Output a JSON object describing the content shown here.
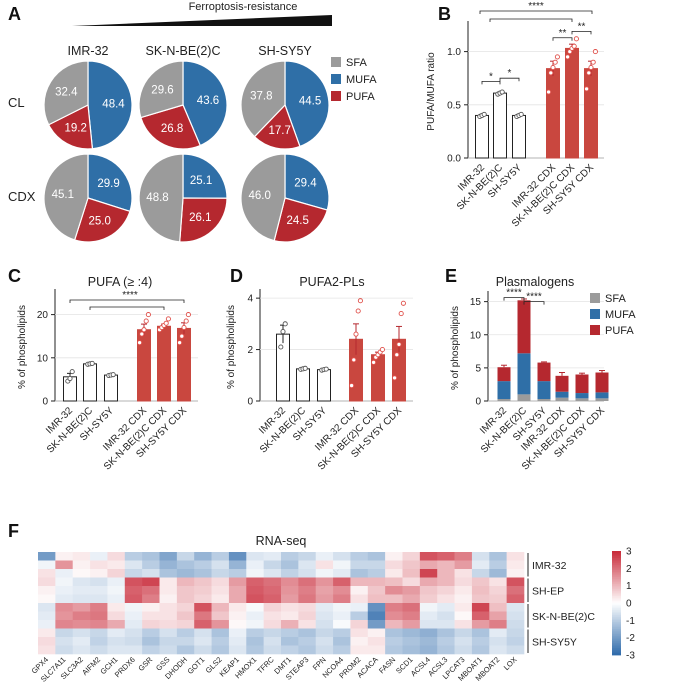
{
  "colors": {
    "sfa": "#9b9b9b",
    "mufa": "#2f6fa7",
    "pufa": "#b5282f",
    "bar_white": "#ffffff",
    "bar_red": "#c9473f",
    "dot_red": "#e0504a"
  },
  "panel_labels": [
    "A",
    "B",
    "C",
    "D",
    "E",
    "F"
  ],
  "chart_data": [
    {
      "id": "A",
      "type": "pie",
      "header": "Ferroptosis-resistance",
      "legend": [
        "SFA",
        "MUFA",
        "PUFA"
      ],
      "columns": [
        "IMR-32",
        "SK-N-BE(2)C",
        "SH-SY5Y"
      ],
      "rows": [
        "CL",
        "CDX"
      ],
      "slices": [
        [
          {
            "SFA": 32.4,
            "MUFA": 48.4,
            "PUFA": 19.2
          },
          {
            "SFA": 29.6,
            "MUFA": 43.6,
            "PUFA": 26.8
          },
          {
            "SFA": 37.8,
            "MUFA": 44.5,
            "PUFA": 17.7
          }
        ],
        [
          {
            "SFA": 45.1,
            "MUFA": 29.9,
            "PUFA": 25.0
          },
          {
            "SFA": 48.8,
            "MUFA": 25.1,
            "PUFA": 26.1
          },
          {
            "SFA": 46.0,
            "MUFA": 29.4,
            "PUFA": 24.5
          }
        ]
      ],
      "slice_text": [
        [
          {
            "SFA": "32.4",
            "MUFA": "48.4",
            "PUFA": "19.2"
          },
          {
            "SFA": "29.6",
            "MUFA": "43.6",
            "PUFA": "26.8"
          },
          {
            "SFA": "37.8",
            "MUFA": "44.5",
            "PUFA": "17.7"
          }
        ],
        [
          {
            "SFA": "45.1",
            "MUFA": "29.9",
            "PUFA": "25.0"
          },
          {
            "SFA": "48.8",
            "MUFA": "25.1",
            "PUFA": "26.1"
          },
          {
            "SFA": "46.0",
            "MUFA": "29.4",
            "PUFA": "24.5"
          }
        ]
      ]
    },
    {
      "id": "B",
      "type": "bar",
      "title": "",
      "ylabel": "PUFA/MUFA ratio",
      "ylim": [
        0,
        1.25
      ],
      "yticks": [
        0,
        0.5,
        1.0
      ],
      "ytick_labels": [
        "0.0",
        "0.5",
        "1.0"
      ],
      "categories": [
        "IMR-32",
        "SK-N-BE(2)C",
        "SH-SY5Y",
        "IMR-32 CDX",
        "SK-N-BE(2)C CDX",
        "SH-SY5Y CDX"
      ],
      "values": [
        0.4,
        0.61,
        0.4,
        0.84,
        1.03,
        0.84
      ],
      "errors": [
        0.01,
        0.01,
        0.01,
        0.07,
        0.04,
        0.07
      ],
      "points": [
        [
          0.39,
          0.4,
          0.41
        ],
        [
          0.6,
          0.61,
          0.62
        ],
        [
          0.39,
          0.4,
          0.41
        ],
        [
          0.62,
          0.8,
          0.85,
          0.9,
          0.95
        ],
        [
          0.95,
          1.0,
          1.03,
          1.05,
          1.12
        ],
        [
          0.65,
          0.8,
          0.85,
          0.9,
          1.0
        ]
      ],
      "significance": [
        {
          "from": 0,
          "to": 1,
          "level": 0.72,
          "label": "*"
        },
        {
          "from": 1,
          "to": 2,
          "level": 0.75,
          "label": "*"
        },
        {
          "from": 3,
          "to": 4,
          "level": 1.13,
          "label": "**"
        },
        {
          "from": 4,
          "to": 5,
          "level": 1.19,
          "label": "**"
        }
      ],
      "group_significance": {
        "label": "****"
      }
    },
    {
      "id": "C",
      "type": "bar",
      "title": "PUFA (≥ :4)",
      "ylabel": "% of phospholipids",
      "ylim": [
        0,
        25
      ],
      "yticks": [
        0,
        10,
        20
      ],
      "ytick_labels": [
        "0",
        "10",
        "20"
      ],
      "categories": [
        "IMR-32",
        "SK-N-BE(2)C",
        "SH-SY5Y",
        "IMR-32 CDX",
        "SK-N-BE(2)C CDX",
        "SH-SY5Y CDX"
      ],
      "values": [
        5.6,
        8.6,
        6.0,
        16.5,
        17.3,
        16.8
      ],
      "errors": [
        0.8,
        0.1,
        0.1,
        1.3,
        0.5,
        1.3
      ],
      "points": [
        [
          4.6,
          5.2,
          6.8
        ],
        [
          8.5,
          8.6,
          8.7
        ],
        [
          5.9,
          6.0,
          6.1
        ],
        [
          13.5,
          15.5,
          16.5,
          18.5,
          20.0
        ],
        [
          16.5,
          17.0,
          17.5,
          18.0,
          19.0
        ],
        [
          13.5,
          15.0,
          17.0,
          18.5,
          20.0
        ]
      ],
      "group_significance": {
        "label": "****"
      }
    },
    {
      "id": "D",
      "type": "bar",
      "title": "PUFA2-PLs",
      "ylabel": "% of phospholipids",
      "ylim": [
        0,
        4.2
      ],
      "yticks": [
        0,
        2,
        4
      ],
      "ytick_labels": [
        "0",
        "2",
        "4"
      ],
      "categories": [
        "IMR-32",
        "SK-N-BE(2)C",
        "SH-SY5Y",
        "IMR-32 CDX",
        "SK-N-BE(2)C CDX",
        "SH-SY5Y CDX"
      ],
      "values": [
        2.6,
        1.25,
        1.22,
        2.4,
        1.8,
        2.4
      ],
      "errors": [
        0.35,
        0.02,
        0.02,
        0.6,
        0.1,
        0.5
      ],
      "points": [
        [
          2.1,
          2.7,
          3.0
        ],
        [
          1.23,
          1.25,
          1.27
        ],
        [
          1.2,
          1.22,
          1.24
        ],
        [
          0.6,
          1.6,
          2.6,
          3.5,
          3.9
        ],
        [
          1.5,
          1.7,
          1.8,
          1.9,
          2.0
        ],
        [
          0.9,
          1.8,
          2.2,
          3.4,
          3.8
        ]
      ]
    },
    {
      "id": "E",
      "type": "bar",
      "stacked": true,
      "title": "Plasmalogens",
      "ylabel": "% of phospholipids",
      "ylim": [
        0,
        16
      ],
      "yticks": [
        0,
        5,
        10,
        15
      ],
      "ytick_labels": [
        "0",
        "5",
        "10",
        "15"
      ],
      "categories": [
        "IMR-32",
        "SK-N-BE(2)C",
        "SH-SY5Y",
        "IMR-32 CDX",
        "SK-N-BE(2)C CDX",
        "SH-SY5Y CDX"
      ],
      "legend": [
        "SFA",
        "MUFA",
        "PUFA"
      ],
      "series": [
        {
          "name": "SFA",
          "values": [
            0.3,
            1.0,
            0.3,
            0.5,
            0.4,
            0.4
          ]
        },
        {
          "name": "MUFA",
          "values": [
            2.7,
            6.2,
            2.7,
            0.9,
            0.8,
            0.9
          ]
        },
        {
          "name": "PUFA",
          "values": [
            2.1,
            8.0,
            2.8,
            2.4,
            2.8,
            3.0
          ]
        }
      ],
      "errors": [
        0.3,
        0.2,
        0.1,
        0.5,
        0.2,
        0.3
      ],
      "significance": [
        {
          "from": 0,
          "to": 1,
          "level": 15.6,
          "label": "****"
        },
        {
          "from": 1,
          "to": 2,
          "level": 15.0,
          "label": "****"
        }
      ]
    },
    {
      "id": "F",
      "type": "heatmap",
      "title": "RNA-seq",
      "genes": [
        "GPX4",
        "SLC7A11",
        "SLC3A2",
        "AIFM2",
        "GCH1",
        "PRDX6",
        "GSR",
        "GSS",
        "DHODH",
        "GOT1",
        "GLS2",
        "KEAP1",
        "HMOX1",
        "TFRC",
        "DMT1",
        "STEAP3",
        "FPN",
        "NCOA4",
        "PROM2",
        "ACACA",
        "FASN",
        "SCD1",
        "ACSL4",
        "ACSL3",
        "LPCAT3",
        "MBOAT1",
        "MBOAT2",
        "LOX"
      ],
      "groups": [
        "IMR-32",
        "SH-EP",
        "SK-N-BE(2)C",
        "SH-SY5Y"
      ],
      "rows_per_group": 3,
      "colorbar_ticks": [
        3,
        2,
        1,
        0,
        -1,
        -2,
        -3
      ],
      "colorbar_labels": [
        "3",
        "2",
        "1",
        "0",
        "-1",
        "-2",
        "-3"
      ],
      "matrix": [
        [
          -2.0,
          0.2,
          0.3,
          -0.3,
          0.5,
          -1.0,
          -1.2,
          -1.8,
          -0.8,
          -1.5,
          -1.0,
          -2.2,
          -0.5,
          -0.4,
          -1.0,
          -0.8,
          -0.3,
          -0.6,
          -1.0,
          -1.2,
          0.2,
          0.6,
          2.4,
          2.2,
          1.8,
          -0.6,
          -1.2,
          0.4
        ],
        [
          -0.2,
          1.5,
          0.2,
          0.4,
          0.3,
          -0.5,
          -1.0,
          -1.5,
          -1.2,
          -1.0,
          -0.6,
          -1.5,
          -0.3,
          -0.8,
          -1.2,
          -0.5,
          0.4,
          -0.2,
          -0.8,
          -0.8,
          0.5,
          0.8,
          1.2,
          1.0,
          1.4,
          -0.4,
          -1.0,
          0.3
        ],
        [
          0.4,
          -0.3,
          0.1,
          0.2,
          0.6,
          -0.8,
          -0.6,
          -1.2,
          -1.4,
          -1.2,
          -0.8,
          -1.0,
          -0.2,
          -0.5,
          -0.9,
          -0.6,
          -0.2,
          -0.4,
          -1.2,
          -1.0,
          0.3,
          0.9,
          2.6,
          1.0,
          0.4,
          -0.8,
          -1.4,
          0.2
        ],
        [
          0.5,
          -0.2,
          -0.5,
          -0.6,
          -0.3,
          2.4,
          2.6,
          0.3,
          1.0,
          0.8,
          0.5,
          1.4,
          2.2,
          2.0,
          1.6,
          2.0,
          1.5,
          2.2,
          1.0,
          1.0,
          0.9,
          0.5,
          1.2,
          1.0,
          0.5,
          0.8,
          0.4,
          2.4
        ],
        [
          0.2,
          -0.3,
          -0.4,
          -0.4,
          -0.2,
          2.2,
          2.0,
          0.3,
          0.8,
          0.7,
          0.4,
          1.2,
          2.3,
          2.1,
          1.5,
          1.8,
          1.3,
          1.6,
          0.2,
          0.8,
          1.6,
          1.4,
          0.8,
          0.6,
          0.3,
          0.9,
          0.6,
          2.0
        ],
        [
          0.1,
          -0.4,
          -0.5,
          -0.5,
          -0.3,
          2.3,
          1.8,
          0.2,
          0.8,
          0.6,
          0.3,
          1.2,
          2.4,
          2.2,
          1.4,
          1.9,
          1.4,
          1.8,
          0.4,
          0.9,
          0.9,
          1.2,
          0.7,
          0.4,
          0.2,
          0.8,
          0.7,
          2.2
        ],
        [
          -0.5,
          1.6,
          1.4,
          1.8,
          0.3,
          -0.2,
          0.2,
          0.4,
          0.6,
          2.4,
          1.0,
          0.3,
          -0.1,
          0.6,
          0.4,
          0.5,
          -0.4,
          -0.2,
          -0.3,
          -2.2,
          1.8,
          2.0,
          -0.2,
          -0.4,
          0.3,
          2.6,
          0.9,
          -0.5
        ],
        [
          -0.4,
          1.5,
          1.8,
          1.9,
          0.5,
          -0.3,
          0.4,
          0.4,
          0.8,
          1.9,
          0.8,
          0.2,
          -0.3,
          0.4,
          0.3,
          0.6,
          -0.5,
          -0.3,
          -1.0,
          -2.5,
          1.6,
          1.8,
          -0.4,
          -0.6,
          0.1,
          2.2,
          1.3,
          -0.6
        ],
        [
          -0.3,
          1.7,
          1.6,
          1.7,
          1.2,
          -0.4,
          0.6,
          0.5,
          0.6,
          2.2,
          1.5,
          0.1,
          -0.2,
          0.5,
          1.1,
          0.4,
          -0.6,
          -0.1,
          0.6,
          -2.0,
          1.0,
          1.4,
          -0.5,
          -0.5,
          0.4,
          1.4,
          1.8,
          -0.7
        ],
        [
          0.3,
          -0.8,
          -0.6,
          -0.8,
          -0.4,
          -0.6,
          -1.0,
          -0.6,
          -1.0,
          -0.6,
          -1.2,
          -0.3,
          -1.0,
          -0.8,
          -1.0,
          -1.2,
          -0.8,
          -1.0,
          0.4,
          0.2,
          -1.2,
          -1.4,
          -1.6,
          -1.2,
          -0.8,
          -1.2,
          -0.4,
          -0.8
        ],
        [
          0.5,
          -0.6,
          -0.4,
          -0.9,
          -0.6,
          -0.7,
          -1.2,
          -0.8,
          -0.8,
          -0.5,
          -1.0,
          -0.4,
          -1.2,
          -0.6,
          -1.2,
          -1.0,
          -0.6,
          -1.2,
          0.2,
          0.4,
          -1.0,
          -1.2,
          -1.4,
          -1.0,
          -0.6,
          -1.0,
          -0.6,
          -0.9
        ],
        [
          0.4,
          -0.7,
          -0.5,
          -0.7,
          -0.5,
          -0.5,
          -0.9,
          -0.7,
          -1.1,
          -0.7,
          -1.1,
          -0.5,
          -1.1,
          -0.7,
          -0.9,
          -1.1,
          -0.7,
          -1.0,
          0.3,
          0.3,
          -1.1,
          -1.3,
          -1.5,
          -1.1,
          -0.7,
          -1.1,
          -0.5,
          -0.7
        ]
      ]
    }
  ]
}
